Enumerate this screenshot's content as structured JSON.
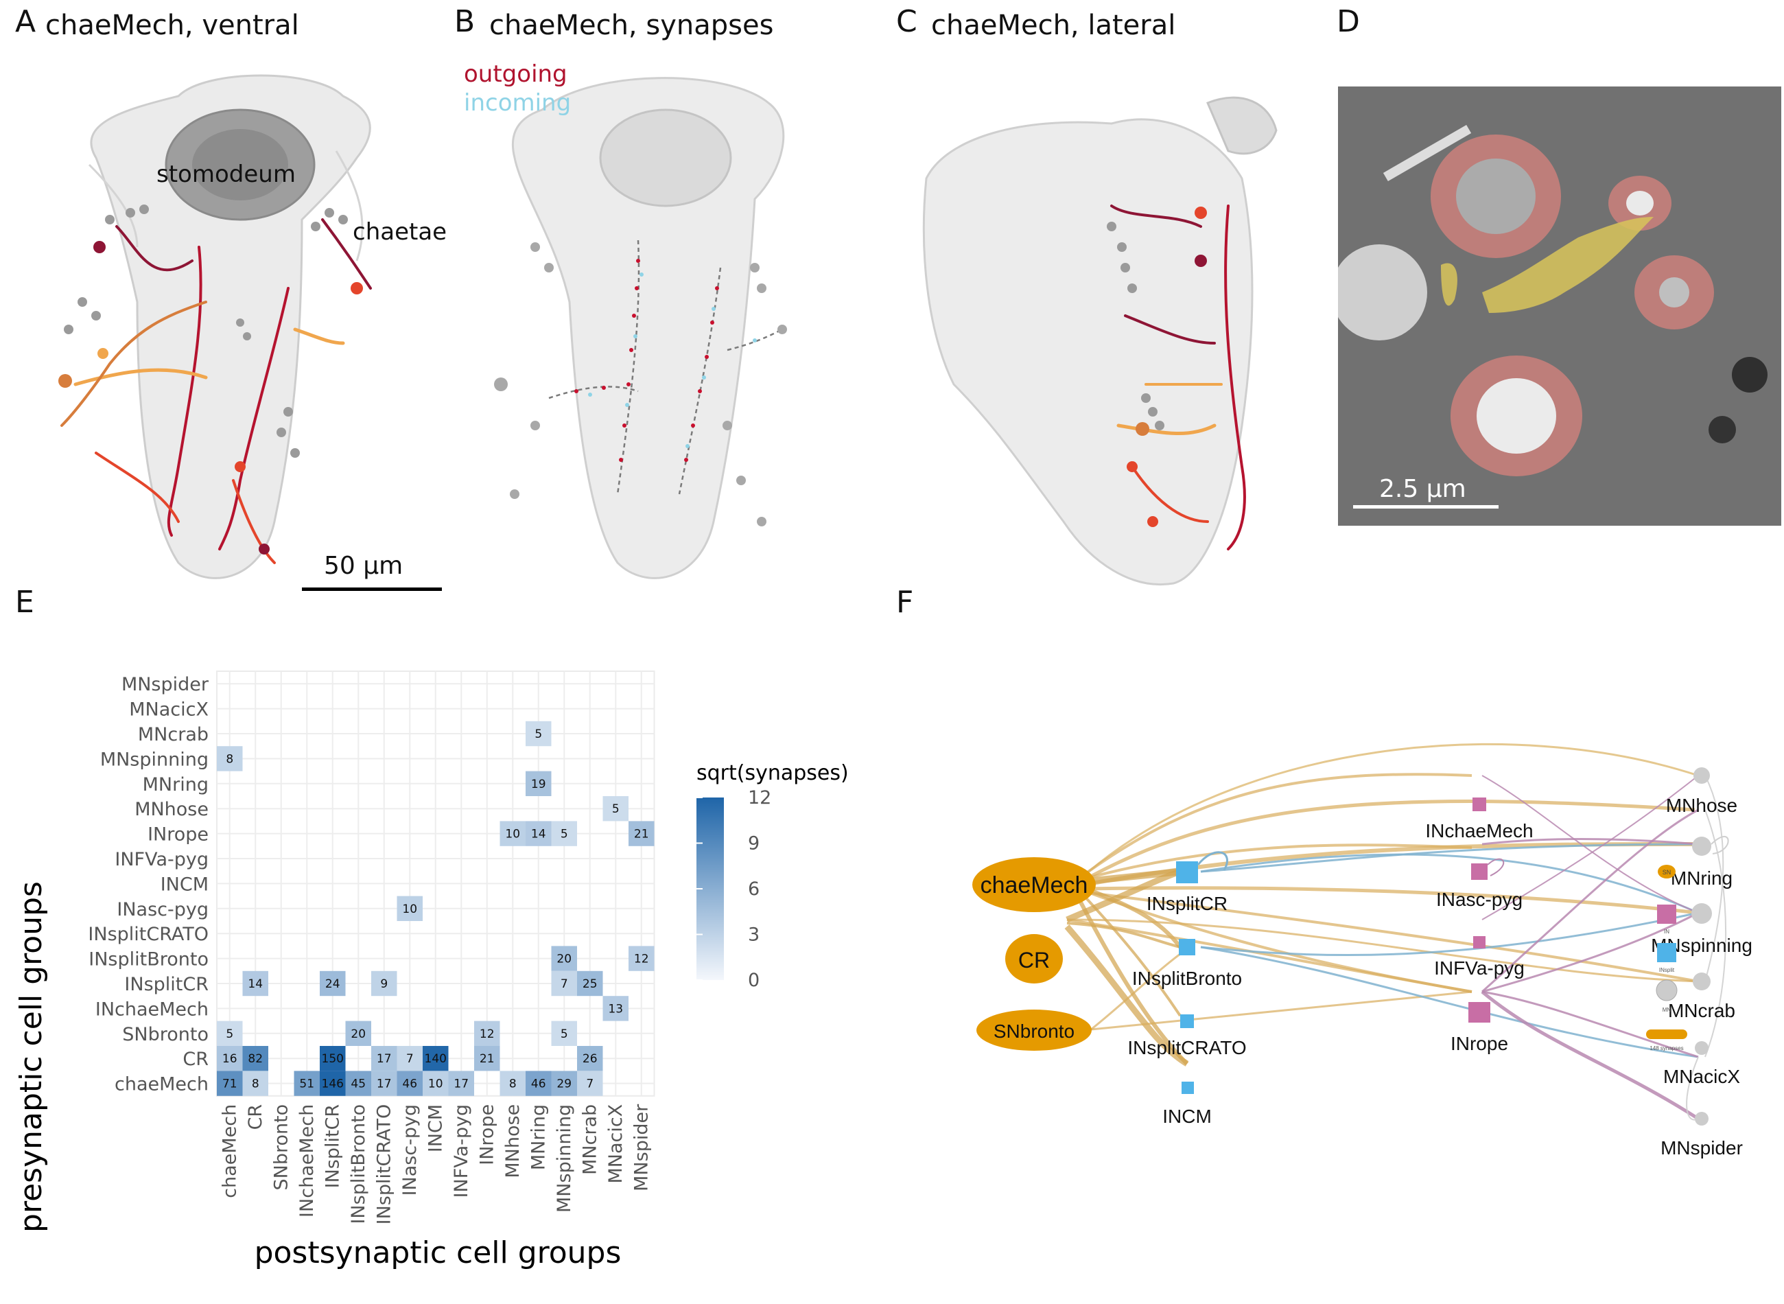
{
  "panels": {
    "A": {
      "letter": "A",
      "title": "chaeMech, ventral",
      "labels": {
        "stomodeum": "stomodeum",
        "chaetae": "chaetae"
      },
      "scalebar": "50 µm"
    },
    "B": {
      "letter": "B",
      "title": "chaeMech, synapses",
      "legend": {
        "outgoing": "outgoing",
        "incoming": "incoming"
      }
    },
    "C": {
      "letter": "C",
      "title": "chaeMech, lateral"
    },
    "D": {
      "letter": "D",
      "scalebar": "2.5 µm"
    },
    "E": {
      "letter": "E"
    },
    "F": {
      "letter": "F"
    }
  },
  "colors": {
    "outgoing": "#b0132e",
    "incoming": "#8fd3e6",
    "heat_low": "#f4f7fc",
    "heat_high": "#1f65a8",
    "sensory": "#e59a00",
    "interneuron": "#c86ea5",
    "insplit": "#4fb3e8",
    "motor": "#cccccc"
  },
  "chart_data": {
    "type": "heatmap",
    "xlabel": "postsynaptic cell groups",
    "ylabel": "presynaptic cell groups",
    "legend_title": "sqrt(synapses)",
    "legend_ticks": [
      "12",
      "9",
      "6",
      "3",
      "0"
    ],
    "legend_range": [
      0,
      12
    ],
    "x_categories": [
      "chaeMech",
      "CR",
      "SNbronto",
      "INchaeMech",
      "INsplitCR",
      "INsplitBronto",
      "INsplitCRATO",
      "INasc-pyg",
      "INCM",
      "INFVa-pyg",
      "INrope",
      "MNhose",
      "MNring",
      "MNspinning",
      "MNcrab",
      "MNacicX",
      "MNspider"
    ],
    "y_categories": [
      "MNspider",
      "MNacicX",
      "MNcrab",
      "MNspinning",
      "MNring",
      "MNhose",
      "INrope",
      "INFVa-pyg",
      "INCM",
      "INasc-pyg",
      "INsplitCRATO",
      "INsplitBronto",
      "INsplitCR",
      "INchaeMech",
      "SNbronto",
      "CR",
      "chaeMech"
    ],
    "cells": [
      {
        "y": "MNcrab",
        "x": "MNring",
        "value": 5
      },
      {
        "y": "MNspinning",
        "x": "chaeMech",
        "value": 8
      },
      {
        "y": "MNring",
        "x": "MNring",
        "value": 19
      },
      {
        "y": "MNhose",
        "x": "MNacicX",
        "value": 5
      },
      {
        "y": "INrope",
        "x": "MNhose",
        "value": 10
      },
      {
        "y": "INrope",
        "x": "MNring",
        "value": 14
      },
      {
        "y": "INrope",
        "x": "MNspinning",
        "value": 5
      },
      {
        "y": "INrope",
        "x": "MNspider",
        "value": 21
      },
      {
        "y": "INasc-pyg",
        "x": "INasc-pyg",
        "value": 10
      },
      {
        "y": "INsplitBronto",
        "x": "MNspinning",
        "value": 20
      },
      {
        "y": "INsplitBronto",
        "x": "MNspider",
        "value": 12
      },
      {
        "y": "INsplitCR",
        "x": "CR",
        "value": 14
      },
      {
        "y": "INsplitCR",
        "x": "INsplitCR",
        "value": 24
      },
      {
        "y": "INsplitCR",
        "x": "INsplitCRATO",
        "value": 9
      },
      {
        "y": "INsplitCR",
        "x": "MNspinning",
        "value": 7
      },
      {
        "y": "INsplitCR",
        "x": "MNcrab",
        "value": 25
      },
      {
        "y": "INchaeMech",
        "x": "MNacicX",
        "value": 13
      },
      {
        "y": "SNbronto",
        "x": "chaeMech",
        "value": 5
      },
      {
        "y": "SNbronto",
        "x": "INsplitBronto",
        "value": 20
      },
      {
        "y": "SNbronto",
        "x": "INrope",
        "value": 12
      },
      {
        "y": "SNbronto",
        "x": "MNspinning",
        "value": 5
      },
      {
        "y": "CR",
        "x": "chaeMech",
        "value": 16
      },
      {
        "y": "CR",
        "x": "CR",
        "value": 82
      },
      {
        "y": "CR",
        "x": "INsplitCR",
        "value": 150
      },
      {
        "y": "CR",
        "x": "INsplitCRATO",
        "value": 17
      },
      {
        "y": "CR",
        "x": "INasc-pyg",
        "value": 7
      },
      {
        "y": "CR",
        "x": "INCM",
        "value": 140
      },
      {
        "y": "CR",
        "x": "INrope",
        "value": 21
      },
      {
        "y": "CR",
        "x": "MNcrab",
        "value": 26
      },
      {
        "y": "chaeMech",
        "x": "chaeMech",
        "value": 71
      },
      {
        "y": "chaeMech",
        "x": "CR",
        "value": 8
      },
      {
        "y": "chaeMech",
        "x": "INchaeMech",
        "value": 51
      },
      {
        "y": "chaeMech",
        "x": "INsplitCR",
        "value": 146
      },
      {
        "y": "chaeMech",
        "x": "INsplitBronto",
        "value": 45
      },
      {
        "y": "chaeMech",
        "x": "INsplitCRATO",
        "value": 17
      },
      {
        "y": "chaeMech",
        "x": "INasc-pyg",
        "value": 46
      },
      {
        "y": "chaeMech",
        "x": "INCM",
        "value": 10
      },
      {
        "y": "chaeMech",
        "x": "INFVa-pyg",
        "value": 17
      },
      {
        "y": "chaeMech",
        "x": "MNhose",
        "value": 8
      },
      {
        "y": "chaeMech",
        "x": "MNring",
        "value": 46
      },
      {
        "y": "chaeMech",
        "x": "MNspinning",
        "value": 29
      },
      {
        "y": "chaeMech",
        "x": "MNcrab",
        "value": 7
      }
    ]
  },
  "network": {
    "legend": {
      "sn": "SN",
      "in": "IN",
      "insplit": "INsplit",
      "mn": "MN",
      "edge": "148 synapses"
    },
    "nodes": [
      {
        "id": "chaeMech",
        "type": "sn"
      },
      {
        "id": "CR",
        "type": "sn"
      },
      {
        "id": "SNbronto",
        "type": "sn"
      },
      {
        "id": "INsplitCR",
        "type": "insplit"
      },
      {
        "id": "INsplitBronto",
        "type": "insplit"
      },
      {
        "id": "INsplitCRATO",
        "type": "insplit"
      },
      {
        "id": "INCM",
        "type": "insplit"
      },
      {
        "id": "INchaeMech",
        "type": "in"
      },
      {
        "id": "INasc-pyg",
        "type": "in"
      },
      {
        "id": "INFVa-pyg",
        "type": "in"
      },
      {
        "id": "INrope",
        "type": "in"
      },
      {
        "id": "MNhose",
        "type": "mn"
      },
      {
        "id": "MNring",
        "type": "mn"
      },
      {
        "id": "MNspinning",
        "type": "mn"
      },
      {
        "id": "MNcrab",
        "type": "mn"
      },
      {
        "id": "MNacicX",
        "type": "mn"
      },
      {
        "id": "MNspider",
        "type": "mn"
      }
    ]
  }
}
